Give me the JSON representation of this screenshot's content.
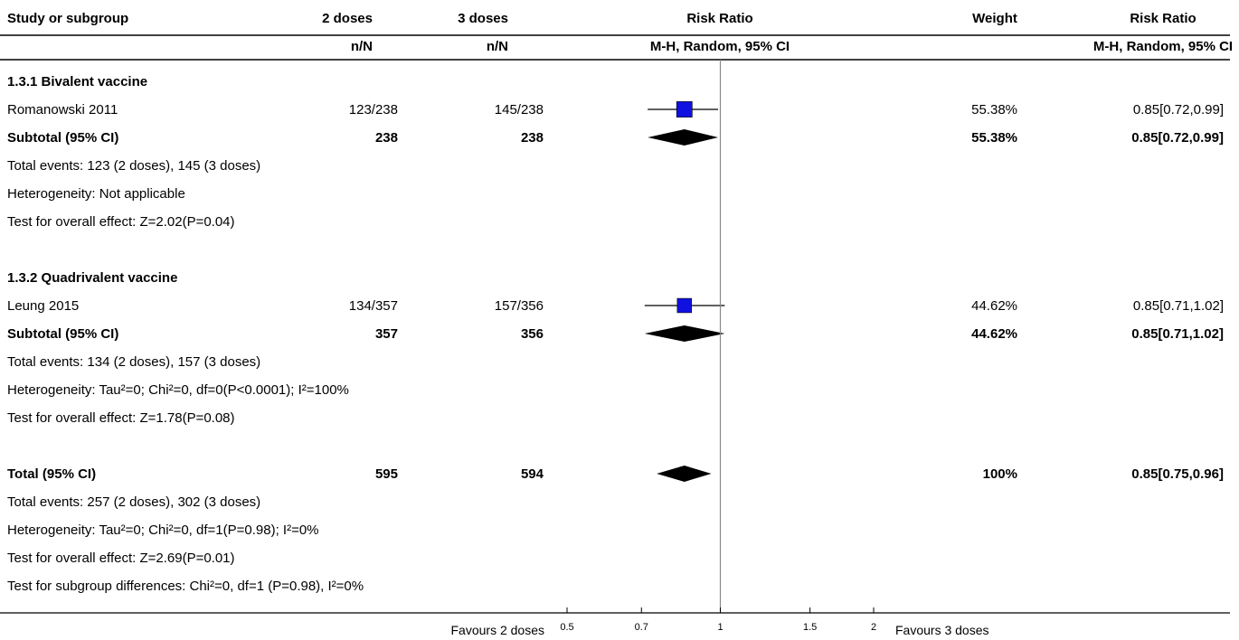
{
  "header": {
    "study_label": "Study or subgroup",
    "group1": "2 doses",
    "group2": "3 doses",
    "group1_sub": "n/N",
    "group2_sub": "n/N",
    "effect_title": "Risk Ratio",
    "effect_sub": "M-H, Random, 95% CI",
    "weight": "Weight",
    "ci_title": "Risk Ratio",
    "ci_sub": "M-H, Random, 95% CI"
  },
  "rows": [
    {
      "kind": "heading",
      "label": "1.3.1 Bivalent vaccine"
    },
    {
      "kind": "study",
      "label": "Romanowski 2011",
      "g1": "123/238",
      "g2": "145/238",
      "weight": "55.38%",
      "ci": "0.85[0.72,0.99]"
    },
    {
      "kind": "subtotal",
      "label": "Subtotal (95% CI)",
      "g1": "238",
      "g2": "238",
      "weight": "55.38%",
      "ci": "0.85[0.72,0.99]"
    },
    {
      "kind": "note",
      "label": "Total events: 123 (2 doses), 145 (3 doses)"
    },
    {
      "kind": "note",
      "label": "Heterogeneity: Not applicable"
    },
    {
      "kind": "note",
      "label": "Test for overall effect: Z=2.02(P=0.04)"
    },
    {
      "kind": "blank",
      "label": ""
    },
    {
      "kind": "heading",
      "label": "1.3.2 Quadrivalent vaccine"
    },
    {
      "kind": "study",
      "label": "Leung 2015",
      "g1": "134/357",
      "g2": "157/356",
      "weight": "44.62%",
      "ci": "0.85[0.71,1.02]"
    },
    {
      "kind": "subtotal",
      "label": "Subtotal (95% CI)",
      "g1": "357",
      "g2": "356",
      "weight": "44.62%",
      "ci": "0.85[0.71,1.02]"
    },
    {
      "kind": "note",
      "label": "Total events: 134 (2 doses), 157 (3 doses)"
    },
    {
      "kind": "note",
      "label": "Heterogeneity: Tau²=0; Chi²=0, df=0(P<0.0001); I²=100%"
    },
    {
      "kind": "note",
      "label": "Test for overall effect: Z=1.78(P=0.08)"
    },
    {
      "kind": "blank",
      "label": ""
    },
    {
      "kind": "total",
      "label": "Total (95% CI)",
      "g1": "595",
      "g2": "594",
      "weight": "100%",
      "ci": "0.85[0.75,0.96]"
    },
    {
      "kind": "note",
      "label": "Total events: 257 (2 doses), 302 (3 doses)"
    },
    {
      "kind": "note",
      "label": "Heterogeneity: Tau²=0; Chi²=0, df=1(P=0.98); I²=0%"
    },
    {
      "kind": "note",
      "label": "Test for overall effect: Z=2.69(P=0.01)"
    },
    {
      "kind": "note",
      "label": "Test for subgroup differences: Chi²=0, df=1 (P=0.98), I²=0%"
    }
  ],
  "axis": {
    "left_label": "Favours 2 doses",
    "right_label": "Favours 3 doses"
  },
  "colors": {
    "study_marker": "#1010e0",
    "diamond": "#000000",
    "text": "#222222"
  },
  "chart_data": {
    "type": "forest",
    "scale": "log",
    "ticks": [
      0.5,
      0.7,
      1,
      1.5,
      2
    ],
    "tick_labels": [
      "0.5",
      "0.7",
      "1",
      "1.5",
      "2"
    ],
    "xlim": [
      0.5,
      2
    ],
    "null_line": 1,
    "estimates": [
      {
        "row": 1,
        "label": "Romanowski 2011",
        "kind": "study",
        "est": 0.85,
        "lo": 0.72,
        "hi": 0.99,
        "weight_pct": 55.38
      },
      {
        "row": 2,
        "label": "Subtotal (95% CI)",
        "kind": "diamond",
        "est": 0.85,
        "lo": 0.72,
        "hi": 0.99
      },
      {
        "row": 8,
        "label": "Leung 2015",
        "kind": "study",
        "est": 0.85,
        "lo": 0.71,
        "hi": 1.02,
        "weight_pct": 44.62
      },
      {
        "row": 9,
        "label": "Subtotal (95% CI)",
        "kind": "diamond",
        "est": 0.85,
        "lo": 0.71,
        "hi": 1.02
      },
      {
        "row": 14,
        "label": "Total (95% CI)",
        "kind": "diamond",
        "est": 0.85,
        "lo": 0.75,
        "hi": 0.96
      }
    ]
  }
}
